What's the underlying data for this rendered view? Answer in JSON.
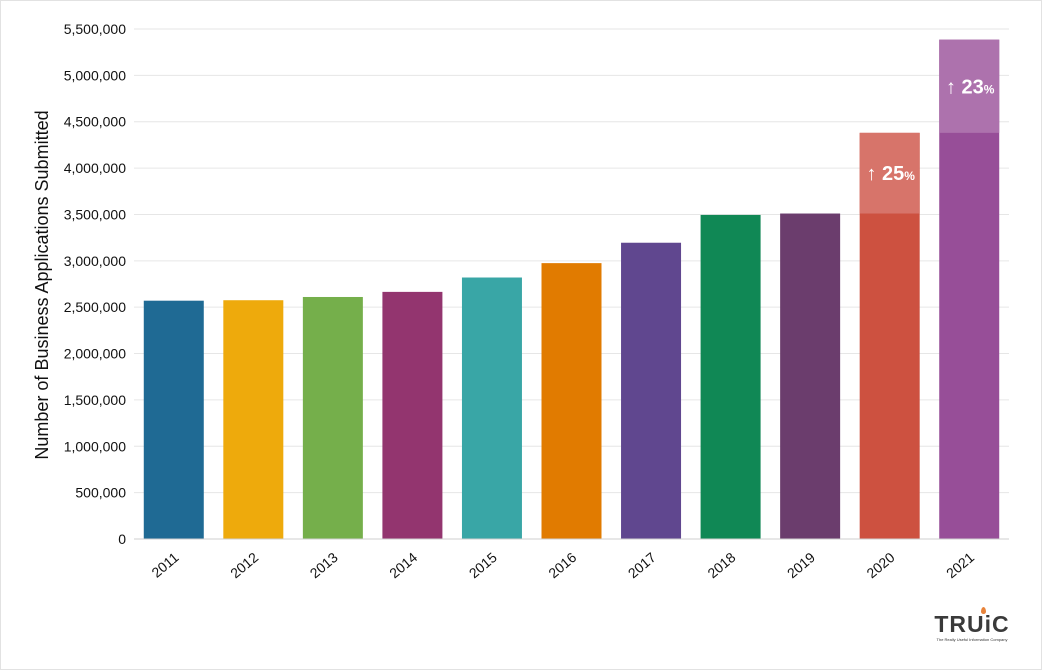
{
  "chart_data": {
    "type": "bar",
    "title": "",
    "xlabel": "",
    "ylabel": "Number of Business Applications Submitted",
    "categories": [
      "2011",
      "2012",
      "2013",
      "2014",
      "2015",
      "2016",
      "2017",
      "2018",
      "2019",
      "2020",
      "2021"
    ],
    "values": [
      2570000,
      2575000,
      2610000,
      2665000,
      2820000,
      2975000,
      3195000,
      3495000,
      3510000,
      4380000,
      5385000
    ],
    "colors": [
      "#1f6a94",
      "#eeaa0c",
      "#75af4b",
      "#93356f",
      "#39a6a6",
      "#e17b00",
      "#60478f",
      "#108855",
      "#6b3d6d",
      "#cd5140",
      "#974e98"
    ],
    "ylim": [
      0,
      5500000
    ],
    "yticks": [
      0,
      500000,
      1000000,
      1500000,
      2000000,
      2500000,
      3000000,
      3500000,
      4000000,
      4500000,
      5000000,
      5500000
    ],
    "ytick_labels": [
      "0",
      "500,000",
      "1,000,000",
      "1,500,000",
      "2,000,000",
      "2,500,000",
      "3,000,000",
      "3,500,000",
      "4,000,000",
      "4,500,000",
      "5,000,000",
      "5,500,000"
    ],
    "grid": true,
    "increase_highlights": [
      {
        "category": "2020",
        "base": 3510000,
        "value": 4380000,
        "color": "#d7746a",
        "label": "↑ 25",
        "unit": "%"
      },
      {
        "category": "2021",
        "base": 4380000,
        "value": 5385000,
        "color": "#ad72ad",
        "label": "↑ 23",
        "unit": "%"
      }
    ]
  },
  "branding": {
    "logo_text": "TRUiC",
    "tagline": "The Really Useful Information Company",
    "flame_color": "#e8833a"
  }
}
